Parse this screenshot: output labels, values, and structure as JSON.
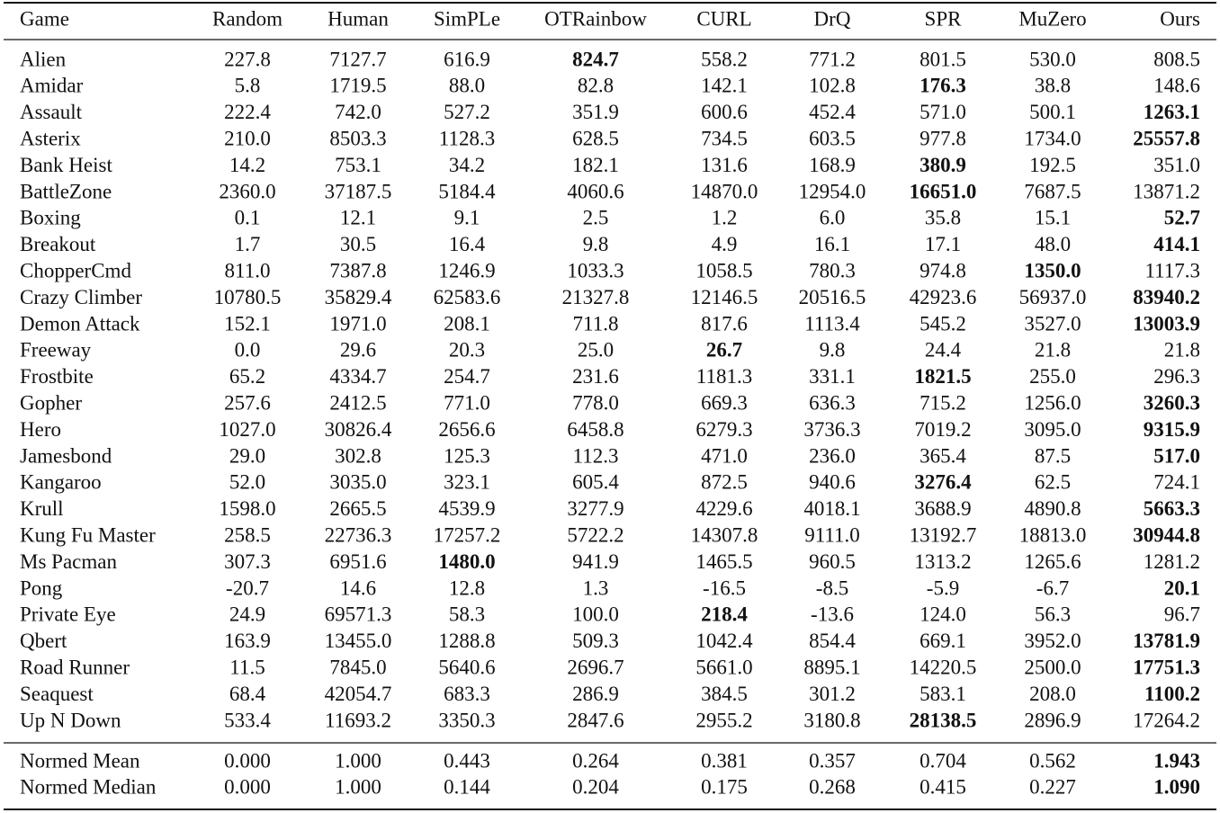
{
  "table": {
    "header": [
      "Game",
      "Random",
      "Human",
      "SimPLe",
      "OTRainbow",
      "CURL",
      "DrQ",
      "SPR",
      "MuZero",
      "Ours"
    ],
    "rows": [
      [
        "Alien",
        "227.8",
        "7127.7",
        "616.9",
        "824.7",
        "558.2",
        "771.2",
        "801.5",
        "530.0",
        "808.5"
      ],
      [
        "Amidar",
        "5.8",
        "1719.5",
        "88.0",
        "82.8",
        "142.1",
        "102.8",
        "176.3",
        "38.8",
        "148.6"
      ],
      [
        "Assault",
        "222.4",
        "742.0",
        "527.2",
        "351.9",
        "600.6",
        "452.4",
        "571.0",
        "500.1",
        "1263.1"
      ],
      [
        "Asterix",
        "210.0",
        "8503.3",
        "1128.3",
        "628.5",
        "734.5",
        "603.5",
        "977.8",
        "1734.0",
        "25557.8"
      ],
      [
        "Bank Heist",
        "14.2",
        "753.1",
        "34.2",
        "182.1",
        "131.6",
        "168.9",
        "380.9",
        "192.5",
        "351.0"
      ],
      [
        "BattleZone",
        "2360.0",
        "37187.5",
        "5184.4",
        "4060.6",
        "14870.0",
        "12954.0",
        "16651.0",
        "7687.5",
        "13871.2"
      ],
      [
        "Boxing",
        "0.1",
        "12.1",
        "9.1",
        "2.5",
        "1.2",
        "6.0",
        "35.8",
        "15.1",
        "52.7"
      ],
      [
        "Breakout",
        "1.7",
        "30.5",
        "16.4",
        "9.8",
        "4.9",
        "16.1",
        "17.1",
        "48.0",
        "414.1"
      ],
      [
        "ChopperCmd",
        "811.0",
        "7387.8",
        "1246.9",
        "1033.3",
        "1058.5",
        "780.3",
        "974.8",
        "1350.0",
        "1117.3"
      ],
      [
        "Crazy Climber",
        "10780.5",
        "35829.4",
        "62583.6",
        "21327.8",
        "12146.5",
        "20516.5",
        "42923.6",
        "56937.0",
        "83940.2"
      ],
      [
        "Demon Attack",
        "152.1",
        "1971.0",
        "208.1",
        "711.8",
        "817.6",
        "1113.4",
        "545.2",
        "3527.0",
        "13003.9"
      ],
      [
        "Freeway",
        "0.0",
        "29.6",
        "20.3",
        "25.0",
        "26.7",
        "9.8",
        "24.4",
        "21.8",
        "21.8"
      ],
      [
        "Frostbite",
        "65.2",
        "4334.7",
        "254.7",
        "231.6",
        "1181.3",
        "331.1",
        "1821.5",
        "255.0",
        "296.3"
      ],
      [
        "Gopher",
        "257.6",
        "2412.5",
        "771.0",
        "778.0",
        "669.3",
        "636.3",
        "715.2",
        "1256.0",
        "3260.3"
      ],
      [
        "Hero",
        "1027.0",
        "30826.4",
        "2656.6",
        "6458.8",
        "6279.3",
        "3736.3",
        "7019.2",
        "3095.0",
        "9315.9"
      ],
      [
        "Jamesbond",
        "29.0",
        "302.8",
        "125.3",
        "112.3",
        "471.0",
        "236.0",
        "365.4",
        "87.5",
        "517.0"
      ],
      [
        "Kangaroo",
        "52.0",
        "3035.0",
        "323.1",
        "605.4",
        "872.5",
        "940.6",
        "3276.4",
        "62.5",
        "724.1"
      ],
      [
        "Krull",
        "1598.0",
        "2665.5",
        "4539.9",
        "3277.9",
        "4229.6",
        "4018.1",
        "3688.9",
        "4890.8",
        "5663.3"
      ],
      [
        "Kung Fu Master",
        "258.5",
        "22736.3",
        "17257.2",
        "5722.2",
        "14307.8",
        "9111.0",
        "13192.7",
        "18813.0",
        "30944.8"
      ],
      [
        "Ms Pacman",
        "307.3",
        "6951.6",
        "1480.0",
        "941.9",
        "1465.5",
        "960.5",
        "1313.2",
        "1265.6",
        "1281.2"
      ],
      [
        "Pong",
        "-20.7",
        "14.6",
        "12.8",
        "1.3",
        "-16.5",
        "-8.5",
        "-5.9",
        "-6.7",
        "20.1"
      ],
      [
        "Private Eye",
        "24.9",
        "69571.3",
        "58.3",
        "100.0",
        "218.4",
        "-13.6",
        "124.0",
        "56.3",
        "96.7"
      ],
      [
        "Qbert",
        "163.9",
        "13455.0",
        "1288.8",
        "509.3",
        "1042.4",
        "854.4",
        "669.1",
        "3952.0",
        "13781.9"
      ],
      [
        "Road Runner",
        "11.5",
        "7845.0",
        "5640.6",
        "2696.7",
        "5661.0",
        "8895.1",
        "14220.5",
        "2500.0",
        "17751.3"
      ],
      [
        "Seaquest",
        "68.4",
        "42054.7",
        "683.3",
        "286.9",
        "384.5",
        "301.2",
        "583.1",
        "208.0",
        "1100.2"
      ],
      [
        "Up N Down",
        "533.4",
        "11693.2",
        "3350.3",
        "2847.6",
        "2955.2",
        "3180.8",
        "28138.5",
        "2896.9",
        "17264.2"
      ]
    ],
    "bold_col": [
      4,
      7,
      9,
      9,
      7,
      7,
      9,
      9,
      8,
      9,
      9,
      5,
      7,
      9,
      9,
      9,
      7,
      9,
      9,
      3,
      9,
      5,
      9,
      9,
      9,
      7
    ],
    "summary": [
      [
        "Normed Mean",
        "0.000",
        "1.000",
        "0.443",
        "0.264",
        "0.381",
        "0.357",
        "0.704",
        "0.562",
        "1.943"
      ],
      [
        "Normed Median",
        "0.000",
        "1.000",
        "0.144",
        "0.204",
        "0.175",
        "0.268",
        "0.415",
        "0.227",
        "1.090"
      ]
    ],
    "summary_bold_col": [
      9,
      9
    ]
  }
}
